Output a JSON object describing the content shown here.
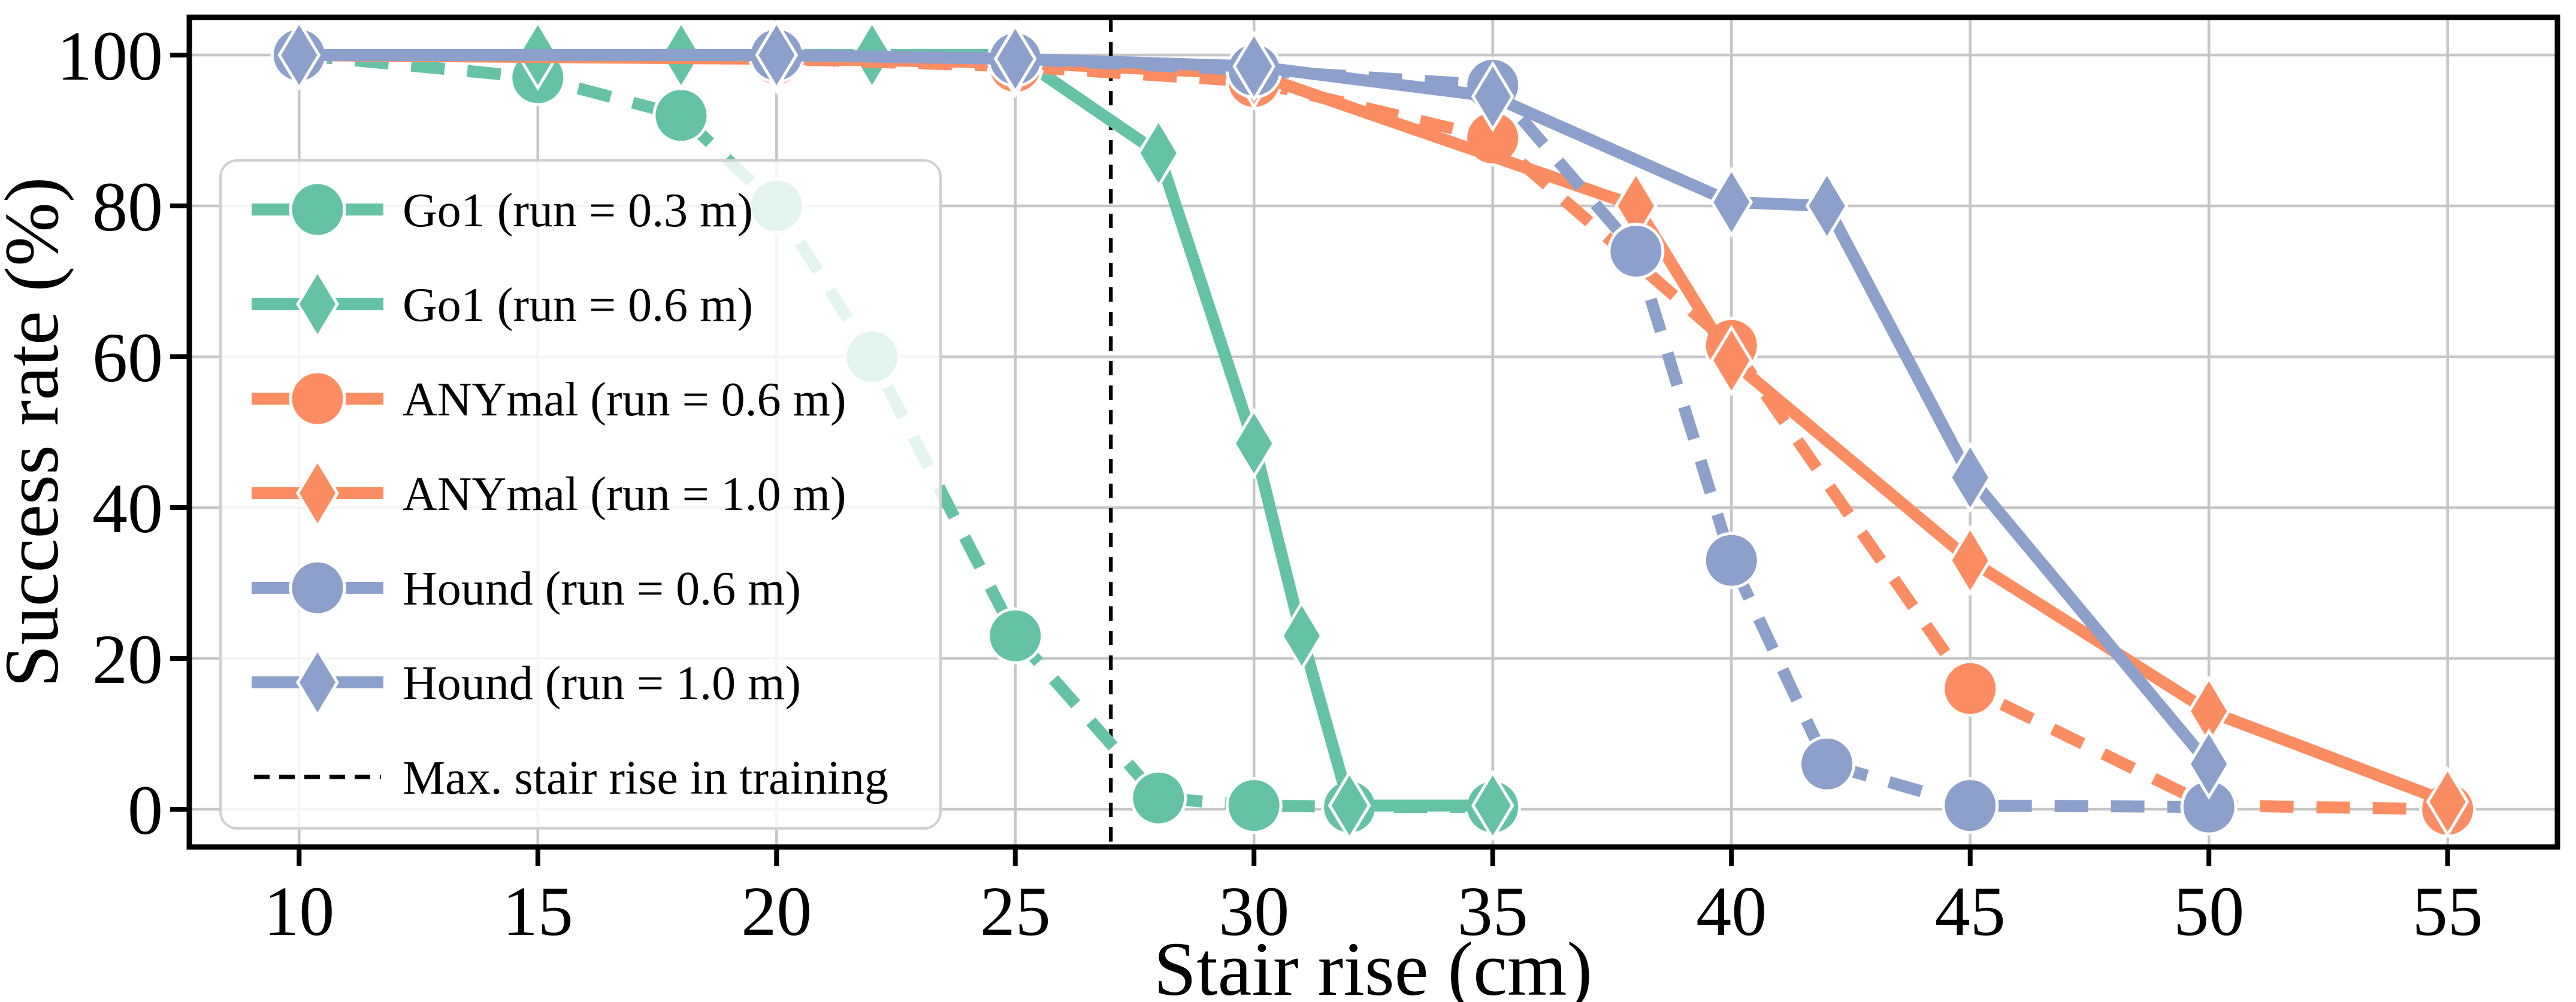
{
  "chart_data": {
    "type": "line",
    "title": "",
    "xlabel": "Stair rise (cm)",
    "ylabel": "Success rate (%)",
    "xlim": [
      7.7,
      57.3
    ],
    "ylim": [
      -5,
      105
    ],
    "xticks": [
      10,
      15,
      20,
      25,
      30,
      35,
      40,
      45,
      50,
      55
    ],
    "yticks": [
      0,
      20,
      40,
      60,
      80,
      100
    ],
    "grid": true,
    "legend_position": "upper left",
    "vline": {
      "x": 27,
      "style": "dashed",
      "color": "#000000",
      "label": "Max. stair rise in training"
    },
    "series": [
      {
        "name": "Go1 (run = 0.3 m)",
        "slug": "go1-03",
        "color": "#66c2a5",
        "line": "dashed",
        "marker": "circle",
        "x": [
          10,
          15,
          18,
          20,
          22,
          25,
          28,
          30,
          32,
          35
        ],
        "y": [
          100,
          97,
          92,
          80,
          60,
          23,
          1.5,
          0.5,
          0.3,
          0.3
        ]
      },
      {
        "name": "Go1 (run = 0.6 m)",
        "slug": "go1-06",
        "color": "#66c2a5",
        "line": "solid",
        "marker": "diamond",
        "x": [
          10,
          15,
          18,
          20,
          22,
          25,
          28,
          30,
          31,
          32,
          35
        ],
        "y": [
          100,
          100,
          100,
          100,
          100,
          100,
          87,
          48.5,
          23,
          0.5,
          0.5
        ]
      },
      {
        "name": "ANYmal (run = 0.6 m)",
        "slug": "anymal-06",
        "color": "#fc8d62",
        "line": "dashed",
        "marker": "circle",
        "x": [
          10,
          20,
          25,
          30,
          35,
          40,
          45,
          50,
          55
        ],
        "y": [
          100,
          99.5,
          98.5,
          96.5,
          89,
          61.5,
          16,
          0.5,
          0
        ]
      },
      {
        "name": "ANYmal (run = 1.0 m)",
        "slug": "anymal-10",
        "color": "#fc8d62",
        "line": "solid",
        "marker": "diamond",
        "x": [
          10,
          20,
          25,
          30,
          38,
          40,
          45,
          50,
          55
        ],
        "y": [
          100,
          99.5,
          99,
          97.5,
          80,
          59.5,
          33,
          13,
          1
        ]
      },
      {
        "name": "Hound (run = 0.6 m)",
        "slug": "hound-06",
        "color": "#8da0cb",
        "line": "dashed",
        "marker": "circle",
        "x": [
          10,
          20,
          25,
          30,
          35,
          38,
          40,
          42,
          45,
          50
        ],
        "y": [
          100,
          100,
          99.5,
          98,
          96,
          74,
          33,
          6,
          0.5,
          0.3
        ]
      },
      {
        "name": "Hound (run = 1.0 m)",
        "slug": "hound-10",
        "color": "#8da0cb",
        "line": "solid",
        "marker": "diamond",
        "x": [
          10,
          20,
          25,
          30,
          35,
          40,
          42,
          45,
          50
        ],
        "y": [
          100,
          100,
          99.5,
          98.5,
          94.5,
          80.5,
          80,
          44,
          6
        ]
      }
    ],
    "legend": {
      "labels": [
        "Go1 (run = 0.3 m)",
        "Go1 (run = 0.6 m)",
        "ANYmal (run = 0.6 m)",
        "ANYmal (run = 1.0 m)",
        "Hound (run = 0.6 m)",
        "Hound (run = 1.0 m)",
        "Max. stair rise in training"
      ],
      "frame_alpha": 0.82
    },
    "colors": {
      "go1": "#66c2a5",
      "anymal": "#fc8d62",
      "hound": "#8da0cb",
      "grid": "#c6c6c6",
      "axis": "#000000",
      "legend_border": "#cfcfcf",
      "marker_edge": "#ffffff"
    }
  }
}
